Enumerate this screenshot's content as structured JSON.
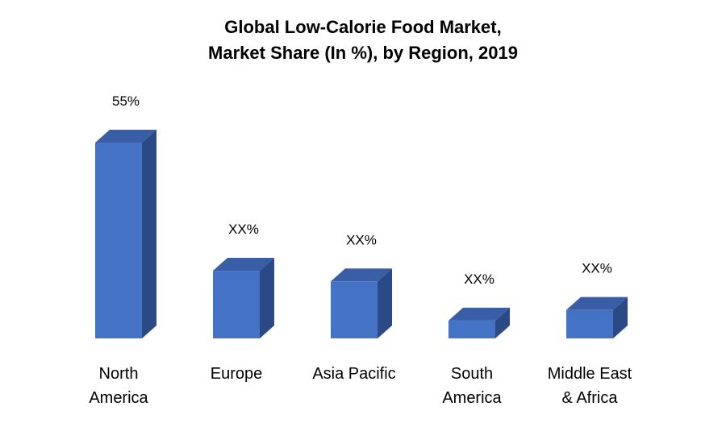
{
  "chart_data": {
    "type": "bar",
    "title_lines": [
      "Global Low-Calorie Food Market,",
      "Market Share (In %), by Region, 2019"
    ],
    "categories": [
      [
        "North",
        "America"
      ],
      [
        "Europe"
      ],
      [
        "Asia Pacific"
      ],
      [
        "South",
        "America"
      ],
      [
        "Middle East",
        "& Africa"
      ]
    ],
    "values": [
      55,
      19,
      16,
      5,
      8
    ],
    "data_labels": [
      "55%",
      "XX%",
      "XX%",
      "XX%",
      "XX%"
    ],
    "ylim": [
      0,
      55
    ],
    "grid": false,
    "legend": "none",
    "colors": {
      "front": "#4472C4",
      "top": "#3A5EA6",
      "side": "#2B4A85"
    }
  }
}
